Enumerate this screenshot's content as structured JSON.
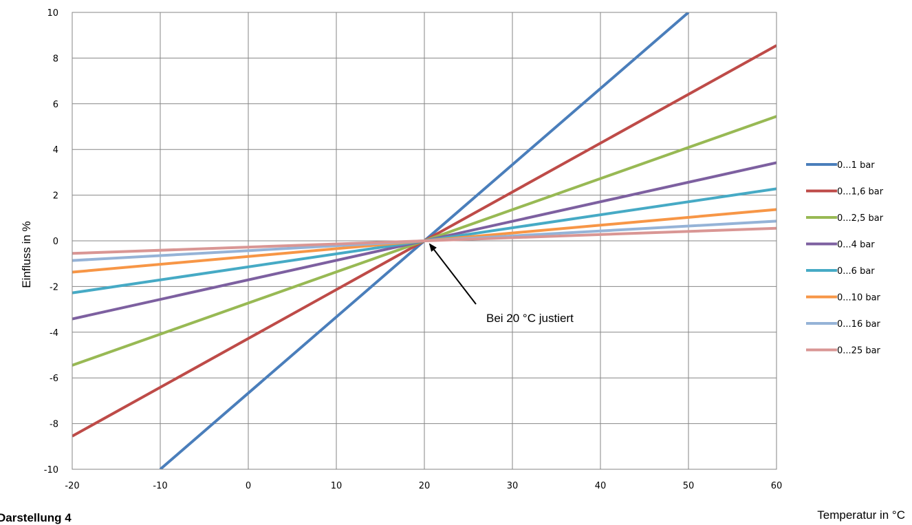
{
  "figure": {
    "caption": "Darstellung 4"
  },
  "chart_data": {
    "type": "line",
    "xlabel": "Temperatur in °C",
    "ylabel": "Einfluss in %",
    "xlim": [
      -20,
      60
    ],
    "ylim": [
      -10,
      10
    ],
    "xticks": [
      "-20",
      "-10",
      "0",
      "10",
      "20",
      "30",
      "40",
      "50",
      "60"
    ],
    "yticks": [
      "10",
      "8",
      "6",
      "4",
      "2",
      "0",
      "-2",
      "-4",
      "-6",
      "-8",
      "-10"
    ],
    "grid": true,
    "legend_position": "right",
    "annotation": {
      "text": "Bei 20 °C justiert",
      "x": 20,
      "y": 0
    },
    "series": [
      {
        "name": "0...1 bar",
        "color": "#4a7ebb",
        "x": [
          -10,
          50
        ],
        "y": [
          -10,
          10
        ]
      },
      {
        "name": "0...1,6 bar",
        "color": "#be4b48",
        "x": [
          -20,
          60
        ],
        "y": [
          -8.55,
          8.55
        ]
      },
      {
        "name": "0...2,5 bar",
        "color": "#98b954",
        "x": [
          -20,
          60
        ],
        "y": [
          -5.45,
          5.45
        ]
      },
      {
        "name": "0...4 bar",
        "color": "#7d60a0",
        "x": [
          -20,
          60
        ],
        "y": [
          -3.42,
          3.42
        ]
      },
      {
        "name": "0...6 bar",
        "color": "#46aac5",
        "x": [
          -20,
          60
        ],
        "y": [
          -2.28,
          2.28
        ]
      },
      {
        "name": "0...10 bar",
        "color": "#f79646",
        "x": [
          -20,
          60
        ],
        "y": [
          -1.37,
          1.37
        ]
      },
      {
        "name": "0...16 bar",
        "color": "#95b3d7",
        "x": [
          -20,
          60
        ],
        "y": [
          -0.86,
          0.86
        ]
      },
      {
        "name": "0...25 bar",
        "color": "#d99694",
        "x": [
          -20,
          60
        ],
        "y": [
          -0.55,
          0.55
        ]
      }
    ]
  }
}
